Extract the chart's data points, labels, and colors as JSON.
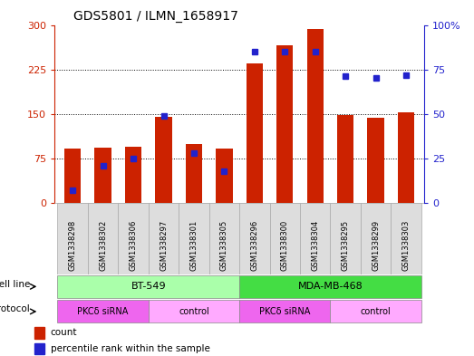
{
  "title": "GDS5801 / ILMN_1658917",
  "samples": [
    "GSM1338298",
    "GSM1338302",
    "GSM1338306",
    "GSM1338297",
    "GSM1338301",
    "GSM1338305",
    "GSM1338296",
    "GSM1338300",
    "GSM1338304",
    "GSM1338295",
    "GSM1338299",
    "GSM1338303"
  ],
  "counts": [
    92,
    93,
    95,
    145,
    100,
    92,
    235,
    265,
    293,
    148,
    143,
    153
  ],
  "percentiles": [
    7,
    21,
    25,
    49,
    28,
    18,
    85,
    85,
    85,
    71,
    70,
    72
  ],
  "cell_line_groups": [
    {
      "label": "BT-549",
      "start": 0,
      "end": 6,
      "color": "#aaffaa"
    },
    {
      "label": "MDA-MB-468",
      "start": 6,
      "end": 12,
      "color": "#44dd44"
    }
  ],
  "protocol_groups": [
    {
      "label": "PKCδ siRNA",
      "start": 0,
      "end": 3,
      "color": "#ee66ee"
    },
    {
      "label": "control",
      "start": 3,
      "end": 6,
      "color": "#ffaaff"
    },
    {
      "label": "PKCδ siRNA",
      "start": 6,
      "end": 9,
      "color": "#ee66ee"
    },
    {
      "label": "control",
      "start": 9,
      "end": 12,
      "color": "#ffaaff"
    }
  ],
  "bar_color": "#CC2200",
  "dot_color": "#2222CC",
  "left_ylim": [
    0,
    300
  ],
  "right_ylim": [
    0,
    100
  ],
  "left_yticks": [
    0,
    75,
    150,
    225,
    300
  ],
  "right_yticks": [
    0,
    25,
    50,
    75,
    100
  ],
  "right_yticklabels": [
    "0",
    "25",
    "50",
    "75",
    "100%"
  ],
  "bar_width": 0.55,
  "bg_color": "#FFFFFF",
  "plot_bg": "#FFFFFF",
  "axis_color_left": "#CC2200",
  "axis_color_right": "#2222CC"
}
